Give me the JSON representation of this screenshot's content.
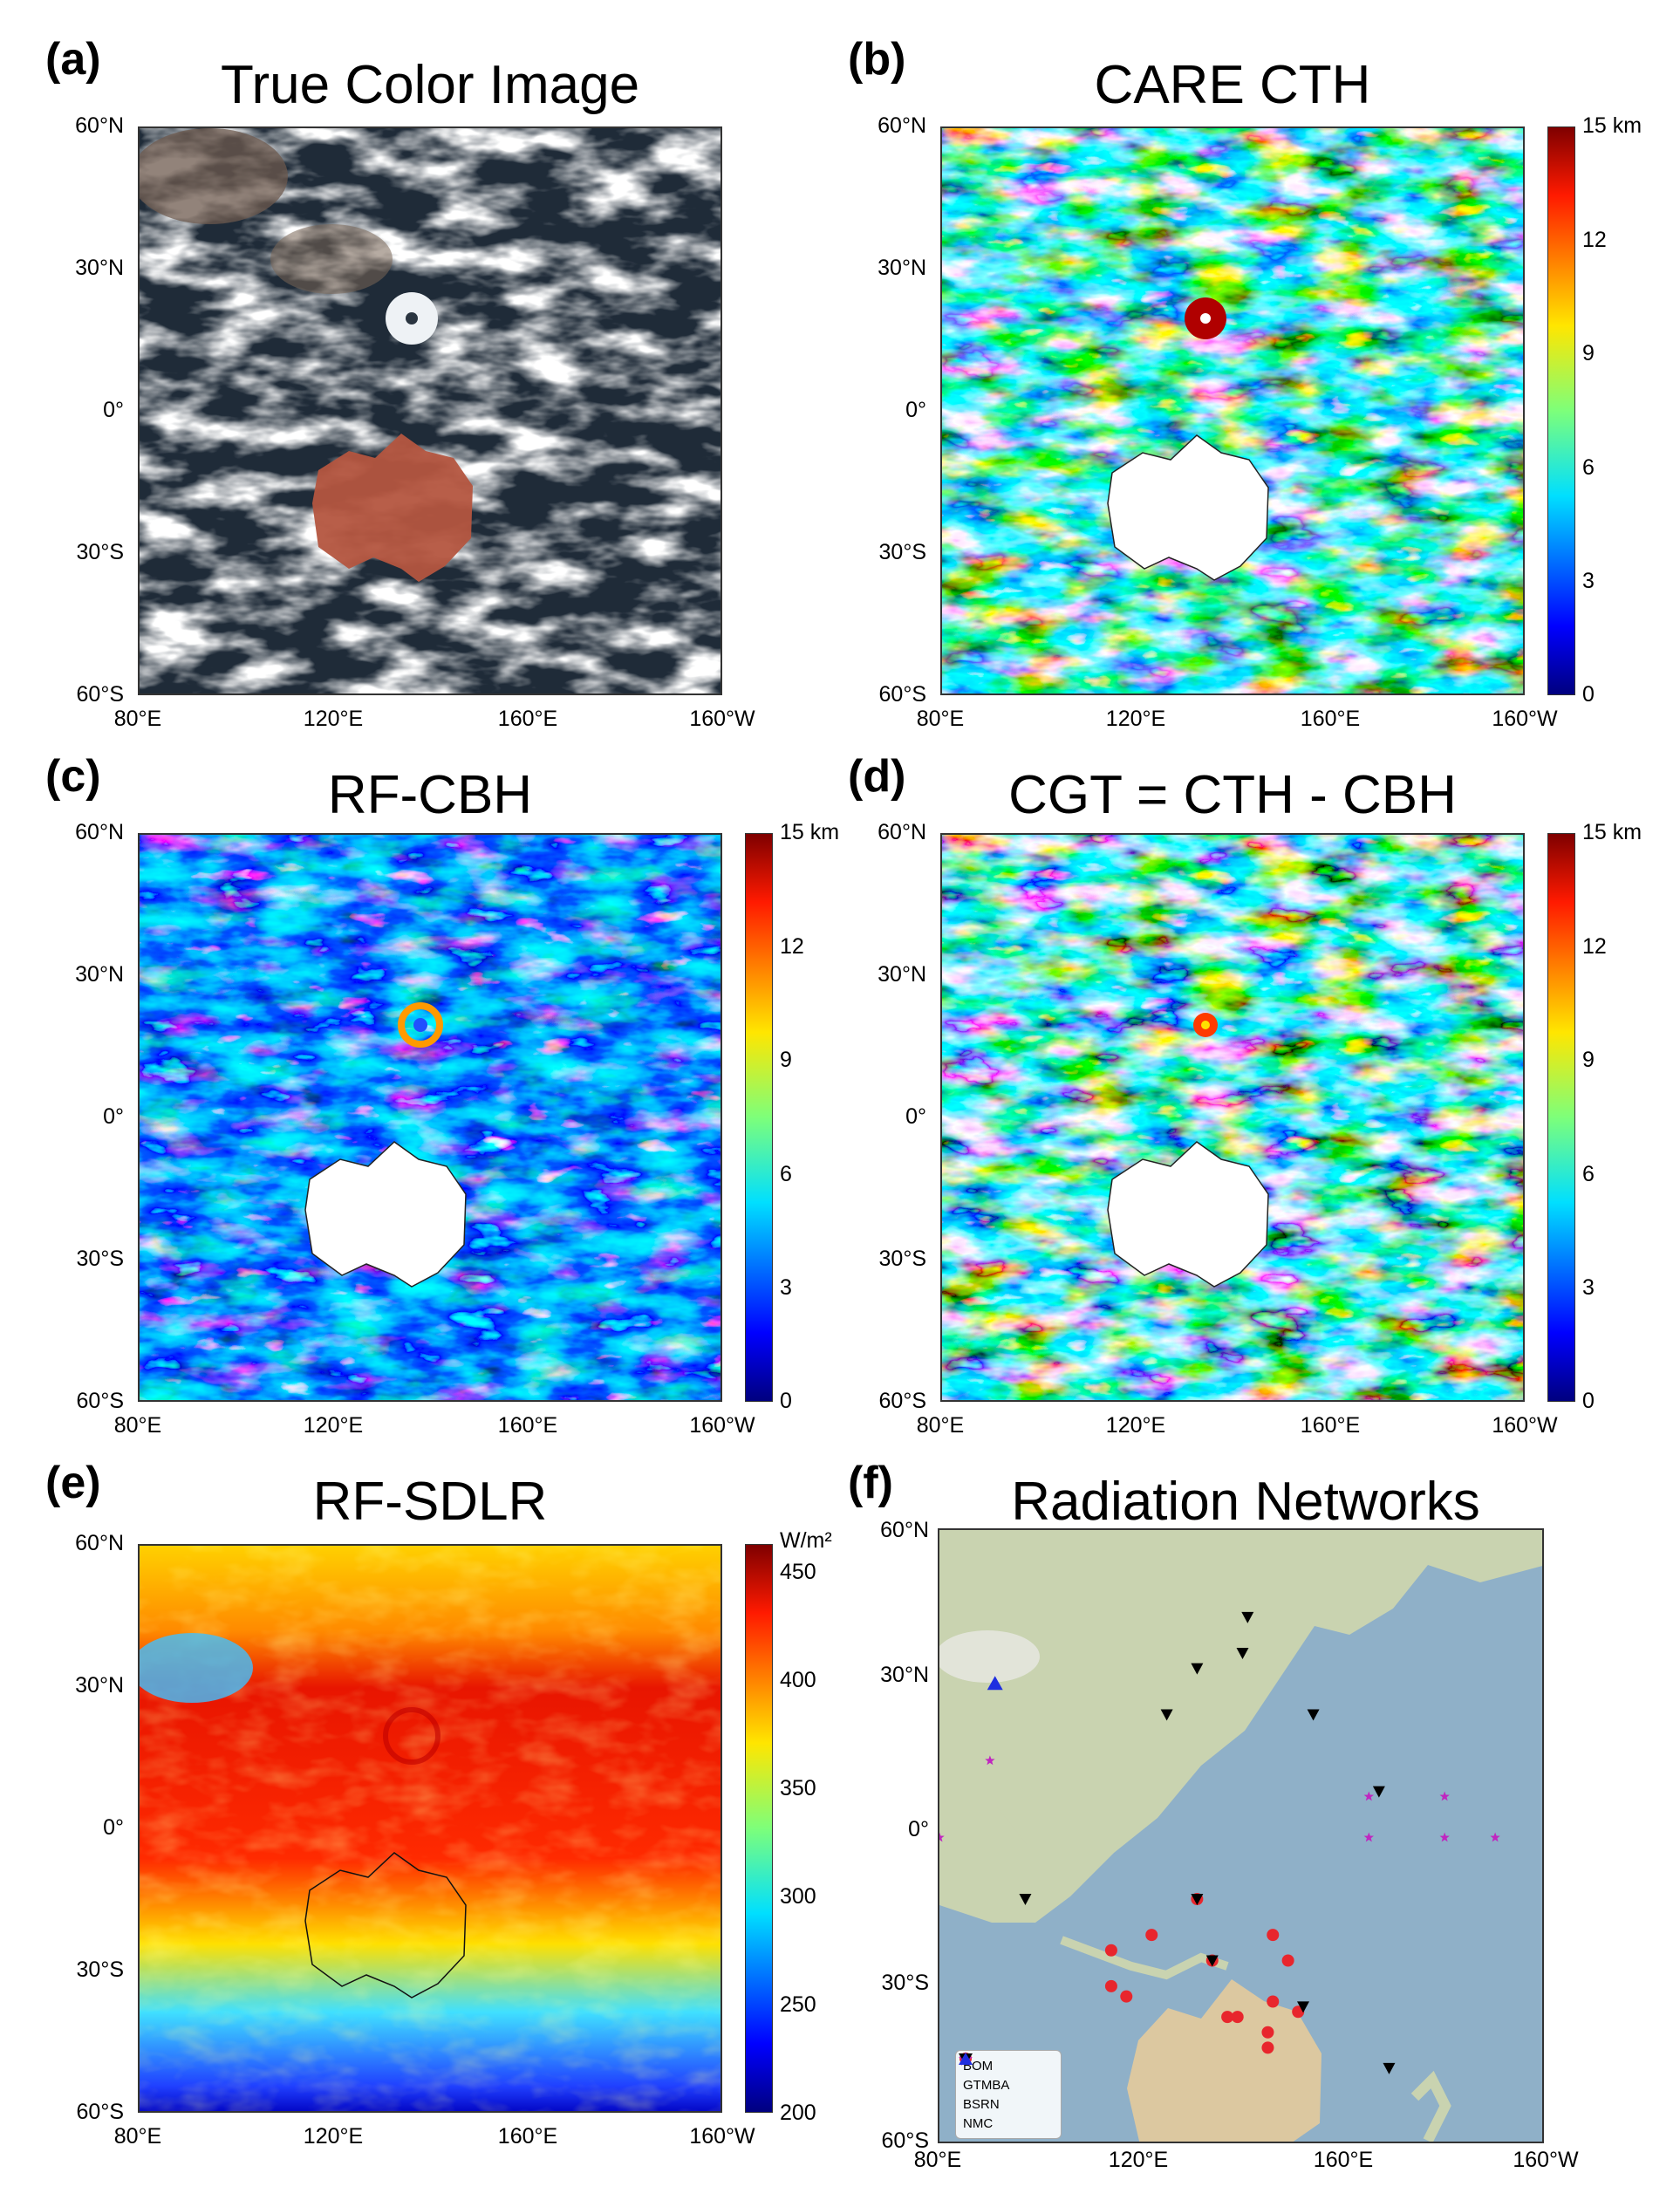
{
  "panels": {
    "a": {
      "label": "(a)",
      "title": "True Color Image"
    },
    "b": {
      "label": "(b)",
      "title": "CARE CTH"
    },
    "c": {
      "label": "(c)",
      "title": "RF-CBH"
    },
    "d": {
      "label": "(d)",
      "title": "CGT = CTH - CBH"
    },
    "e": {
      "label": "(e)",
      "title": "RF-SDLR"
    },
    "f": {
      "label": "(f)",
      "title": "Radiation Networks"
    }
  },
  "axes": {
    "lat_labels": [
      "60°N",
      "30°N",
      "0°",
      "30°S",
      "60°S"
    ],
    "lon_labels": [
      "80°E",
      "120°E",
      "160°E",
      "160°W"
    ]
  },
  "colorbar_height": {
    "unit": "15 km",
    "ticks": [
      "12",
      "9",
      "6",
      "3",
      "0"
    ]
  },
  "colorbar_sdlr": {
    "unit": "W/m²",
    "ticks": [
      "450",
      "400",
      "350",
      "300",
      "250",
      "200"
    ]
  },
  "legend": {
    "items": [
      {
        "label": "BOM",
        "color": "#e8262d",
        "icon": "circle-icon"
      },
      {
        "label": "GTMBA",
        "color": "#c026c0",
        "icon": "star-icon"
      },
      {
        "label": "BSRN",
        "color": "#000000",
        "icon": "triangle-down-icon"
      },
      {
        "label": "NMC",
        "color": "#1f2ee0",
        "icon": "triangle-up-icon"
      }
    ]
  },
  "stations": {
    "BOM": [
      [
        114,
        -22
      ],
      [
        114,
        -29
      ],
      [
        117,
        -31
      ],
      [
        122,
        -19
      ],
      [
        131,
        -12
      ],
      [
        134,
        -24
      ],
      [
        137,
        -35
      ],
      [
        146,
        -19
      ],
      [
        149,
        -24
      ],
      [
        146,
        -32
      ],
      [
        145,
        -38
      ],
      [
        145,
        -41
      ],
      [
        151,
        -34
      ],
      [
        139,
        -35
      ]
    ],
    "GTMBA": [
      [
        80,
        0
      ],
      [
        90,
        15
      ],
      [
        165,
        8
      ],
      [
        165,
        0
      ],
      [
        180,
        8
      ],
      [
        180,
        0
      ],
      [
        190,
        0
      ]
    ],
    "BSRN": [
      [
        97,
        -12
      ],
      [
        131,
        -12
      ],
      [
        134,
        -24
      ],
      [
        125,
        24
      ],
      [
        131,
        33
      ],
      [
        140,
        36
      ],
      [
        141,
        43
      ],
      [
        154,
        24
      ],
      [
        167,
        9
      ],
      [
        152,
        -33
      ],
      [
        169,
        -45
      ]
    ],
    "NMC": [
      [
        91,
        30
      ]
    ]
  },
  "colors": {
    "ocean": "#8fb0c8",
    "land": "#c9d3b0",
    "clear": "#ffffff",
    "truecolor_ocean": "#1e2a36"
  }
}
